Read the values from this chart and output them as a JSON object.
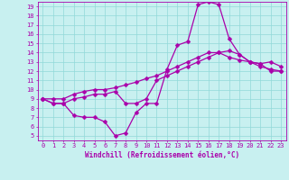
{
  "title": "",
  "xlabel": "Windchill (Refroidissement éolien,°C)",
  "bg_color": "#c8f0f0",
  "line_color": "#aa00aa",
  "grid_color": "#90d8d8",
  "xlim": [
    -0.5,
    23.5
  ],
  "ylim": [
    4.5,
    19.5
  ],
  "xticks": [
    0,
    1,
    2,
    3,
    4,
    5,
    6,
    7,
    8,
    9,
    10,
    11,
    12,
    13,
    14,
    15,
    16,
    17,
    18,
    19,
    20,
    21,
    22,
    23
  ],
  "yticks": [
    5,
    6,
    7,
    8,
    9,
    10,
    11,
    12,
    13,
    14,
    15,
    16,
    17,
    18,
    19
  ],
  "curve1_x": [
    0,
    1,
    2,
    3,
    4,
    5,
    6,
    7,
    8,
    9,
    10,
    11,
    12,
    13,
    14,
    15,
    16,
    17,
    18,
    19,
    20,
    21,
    22,
    23
  ],
  "curve1_y": [
    9.0,
    8.5,
    8.5,
    7.2,
    7.0,
    7.0,
    6.5,
    5.0,
    5.3,
    7.5,
    8.5,
    8.5,
    12.2,
    14.8,
    15.2,
    19.2,
    19.5,
    19.2,
    15.5,
    13.8,
    13.0,
    12.8,
    12.0,
    12.0
  ],
  "curve2_x": [
    0,
    1,
    2,
    3,
    4,
    5,
    6,
    7,
    8,
    9,
    10,
    11,
    12,
    13,
    14,
    15,
    16,
    17,
    18,
    19,
    20,
    21,
    22,
    23
  ],
  "curve2_y": [
    9.0,
    8.5,
    8.5,
    9.0,
    9.2,
    9.5,
    9.5,
    9.8,
    8.5,
    8.5,
    9.0,
    11.0,
    11.5,
    12.0,
    12.5,
    13.0,
    13.5,
    14.0,
    14.2,
    13.8,
    13.0,
    12.8,
    13.0,
    12.5
  ],
  "curve3_x": [
    0,
    1,
    2,
    3,
    4,
    5,
    6,
    7,
    8,
    9,
    10,
    11,
    12,
    13,
    14,
    15,
    16,
    17,
    18,
    19,
    20,
    21,
    22,
    23
  ],
  "curve3_y": [
    9.0,
    9.0,
    9.0,
    9.5,
    9.8,
    10.0,
    10.0,
    10.2,
    10.5,
    10.8,
    11.2,
    11.5,
    12.0,
    12.5,
    13.0,
    13.5,
    14.0,
    14.0,
    13.5,
    13.2,
    13.0,
    12.5,
    12.2,
    12.0
  ],
  "markersize": 2.5,
  "linewidth": 0.9,
  "tick_fontsize": 5.0,
  "xlabel_fontsize": 5.5
}
